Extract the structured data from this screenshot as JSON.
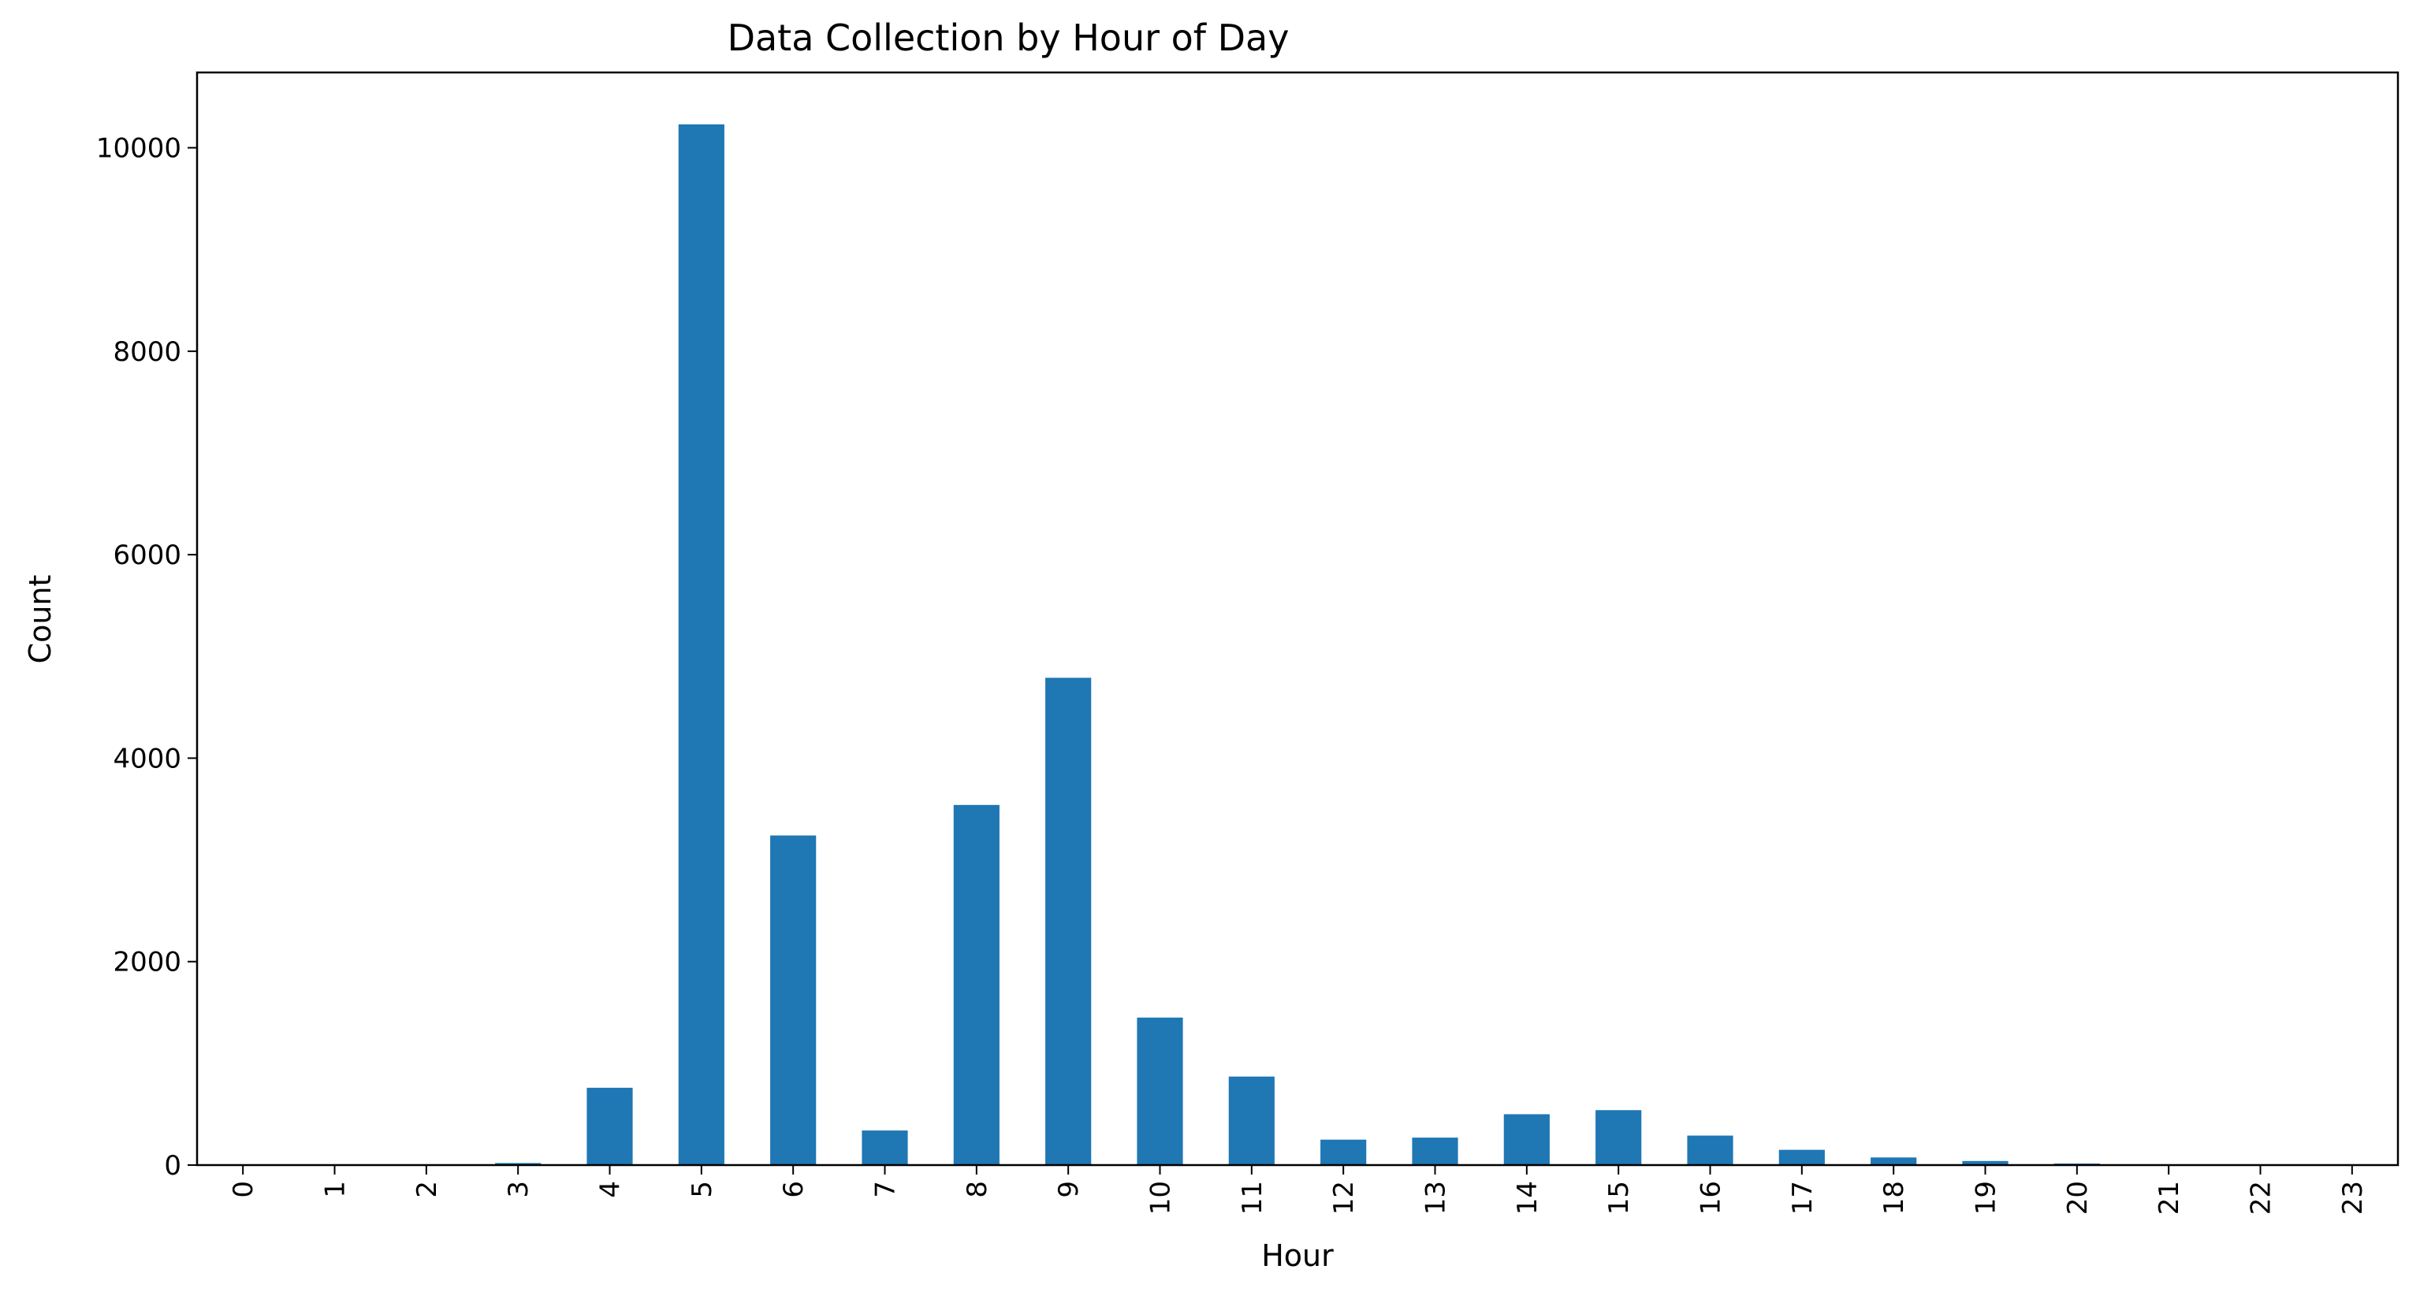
{
  "chart_data": {
    "type": "bar",
    "title": "Data Collection by Hour of Day",
    "xlabel": "Hour",
    "ylabel": "Count",
    "categories": [
      "0",
      "1",
      "2",
      "3",
      "4",
      "5",
      "6",
      "7",
      "8",
      "9",
      "10",
      "11",
      "12",
      "13",
      "14",
      "15",
      "16",
      "17",
      "18",
      "19",
      "20",
      "21",
      "22",
      "23"
    ],
    "values": [
      2,
      2,
      5,
      20,
      760,
      10230,
      3240,
      340,
      3540,
      4790,
      1450,
      870,
      250,
      270,
      500,
      540,
      290,
      150,
      75,
      40,
      15,
      2,
      2,
      2
    ],
    "ylim": [
      0,
      10740
    ],
    "yticks": [
      0,
      2000,
      4000,
      6000,
      8000,
      10000
    ],
    "ytick_labels": [
      "0",
      "2000",
      "4000",
      "6000",
      "8000",
      "10000"
    ],
    "bar_color": "#1f77b4",
    "grid": false,
    "legend": "none"
  }
}
